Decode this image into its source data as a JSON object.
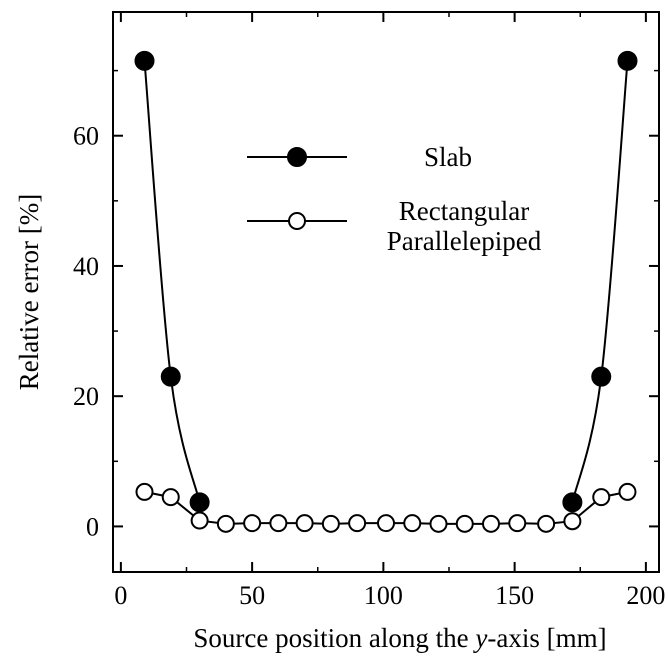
{
  "chart_data": {
    "type": "line",
    "xlabel_prefix": "Source position along the ",
    "xlabel_var": "y",
    "xlabel_suffix": "-axis [mm]",
    "ylabel": "Relative error [%]",
    "xlim": [
      -3,
      205
    ],
    "ylim": [
      -7,
      79
    ],
    "xticks": [
      0,
      50,
      100,
      150,
      200
    ],
    "yticks": [
      0,
      20,
      40,
      60
    ],
    "grid": false,
    "legend_position": "top-center",
    "series": [
      {
        "name": "Slab",
        "marker": "filled-circle",
        "color": "#000000",
        "x": [
          9,
          19,
          30,
          172,
          183,
          193
        ],
        "y": [
          71.5,
          23.0,
          3.7,
          3.7,
          23.0,
          71.5
        ]
      },
      {
        "name_line1": "Rectangular",
        "name_line2": "Parallelepiped",
        "marker": "open-circle",
        "color": "#000000",
        "x": [
          9,
          19,
          30,
          40,
          50,
          60,
          70,
          80,
          90,
          101,
          111,
          121,
          131,
          141,
          151,
          162,
          172,
          183,
          193
        ],
        "y": [
          5.3,
          4.5,
          0.9,
          0.4,
          0.5,
          0.5,
          0.5,
          0.4,
          0.5,
          0.5,
          0.5,
          0.4,
          0.4,
          0.4,
          0.5,
          0.4,
          0.8,
          4.5,
          5.3
        ]
      }
    ]
  }
}
